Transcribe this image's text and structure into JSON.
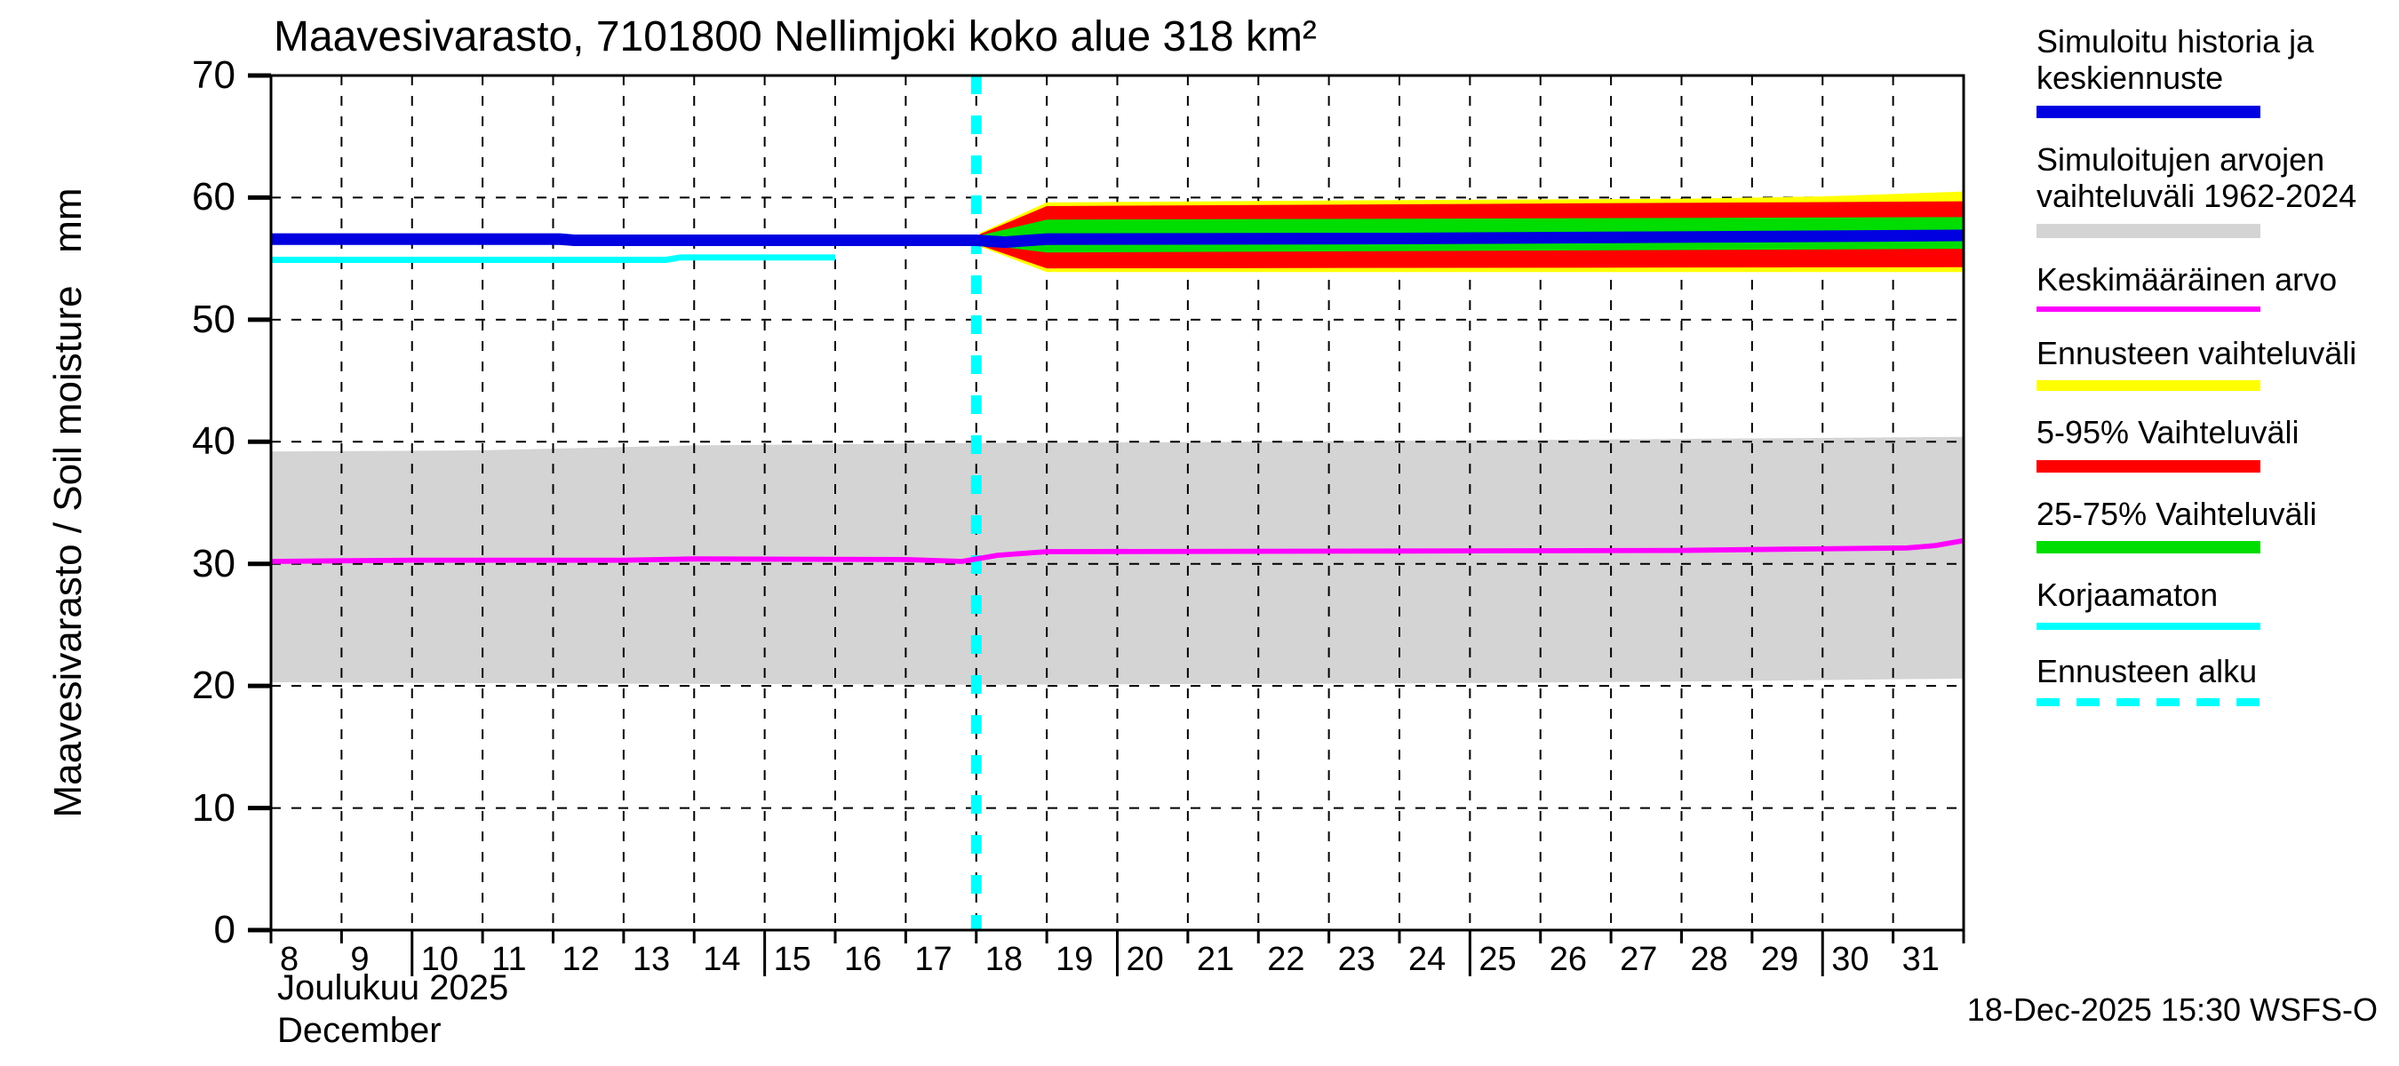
{
  "footer": {
    "timestamp": "18-Dec-2025 15:30 WSFS-O"
  },
  "legend": {
    "items": [
      {
        "label": "Simuloitu historia ja\nkeskiennuste",
        "color": "#0000e0",
        "thickness": 14,
        "dashed": false
      },
      {
        "label": "Simuloitujen arvojen\nvaihteluväli 1962-2024",
        "color": "#d4d4d4",
        "thickness": 16,
        "dashed": false
      },
      {
        "label": "Keskimääräinen arvo",
        "color": "#ff00ff",
        "thickness": 6,
        "dashed": false
      },
      {
        "label": "Ennusteen vaihteluväli",
        "color": "#ffff00",
        "thickness": 12,
        "dashed": false
      },
      {
        "label": "5-95% Vaihteluväli",
        "color": "#ff0000",
        "thickness": 14,
        "dashed": false
      },
      {
        "label": "25-75% Vaihteluväli",
        "color": "#00dd00",
        "thickness": 14,
        "dashed": false
      },
      {
        "label": "Korjaamaton",
        "color": "#00ffff",
        "thickness": 8,
        "dashed": false
      },
      {
        "label": "Ennusteen alku",
        "color": "#00ffff",
        "thickness": 9,
        "dashed": true
      }
    ]
  },
  "chart_data": {
    "type": "line",
    "title": "Maavesivarasto, 7101800 Nellimjoki koko alue 318 km²",
    "ylabel": "Maavesivarasto / Soil moisture   mm",
    "xlabel_fi": "Joulukuu 2025",
    "xlabel_en": "December",
    "xlim": [
      8,
      32
    ],
    "ylim": [
      0,
      70
    ],
    "y_ticks": [
      0,
      10,
      20,
      30,
      40,
      50,
      60,
      70
    ],
    "x_day_labels": [
      "8",
      "9",
      "10",
      "11",
      "12",
      "13",
      "14",
      "15",
      "16",
      "17",
      "18",
      "19",
      "20",
      "21",
      "22",
      "23",
      "24",
      "25",
      "26",
      "27",
      "28",
      "29",
      "30",
      "31"
    ],
    "x_long_tick_days": [
      10,
      15,
      20,
      25,
      30
    ],
    "grid": "dashed",
    "legend_position": "right",
    "forecast_start_x": 18.0,
    "forecast_line_color": "#00ffff",
    "grid_color": "#000000",
    "bands": [
      {
        "name": "simulated-range-1962-2024",
        "color": "#d4d4d4",
        "upper": [
          [
            8,
            39.2
          ],
          [
            11,
            39.3
          ],
          [
            14,
            39.7
          ],
          [
            18,
            39.9
          ],
          [
            22,
            40.0
          ],
          [
            26,
            40.15
          ],
          [
            32,
            40.4
          ]
        ],
        "lower": [
          [
            8,
            20.3
          ],
          [
            12,
            20.2
          ],
          [
            18,
            20.1
          ],
          [
            24,
            20.2
          ],
          [
            28,
            20.35
          ],
          [
            32,
            20.6
          ]
        ]
      },
      {
        "name": "forecast-envelope",
        "color": "#ffff00",
        "upper": [
          [
            18.05,
            57.1
          ],
          [
            19,
            59.6
          ],
          [
            24,
            59.8
          ],
          [
            28,
            59.9
          ],
          [
            30,
            60.1
          ],
          [
            32,
            60.5
          ]
        ],
        "lower": [
          [
            18.05,
            56.0
          ],
          [
            19,
            53.9
          ],
          [
            32,
            53.9
          ]
        ]
      },
      {
        "name": "range-5-95",
        "color": "#ff0000",
        "upper": [
          [
            18.05,
            57.0
          ],
          [
            19,
            59.3
          ],
          [
            24,
            59.45
          ],
          [
            29,
            59.6
          ],
          [
            32,
            59.7
          ]
        ],
        "lower": [
          [
            18.05,
            56.1
          ],
          [
            19,
            54.2
          ],
          [
            32,
            54.3
          ]
        ]
      },
      {
        "name": "range-25-75",
        "color": "#00dd00",
        "upper": [
          [
            18.05,
            56.9
          ],
          [
            19,
            58.2
          ],
          [
            26,
            58.3
          ],
          [
            32,
            58.4
          ]
        ],
        "lower": [
          [
            18.05,
            56.2
          ],
          [
            19,
            55.5
          ],
          [
            32,
            55.8
          ]
        ]
      }
    ],
    "series": [
      {
        "name": "simulated-history-and-mean-forecast",
        "color": "#0000e0",
        "width_units": 0.95,
        "points": [
          [
            8,
            56.6
          ],
          [
            12.1,
            56.6
          ],
          [
            12.3,
            56.5
          ],
          [
            16,
            56.5
          ],
          [
            18,
            56.5
          ],
          [
            18.4,
            56.35
          ],
          [
            19,
            56.6
          ],
          [
            24,
            56.65
          ],
          [
            29,
            56.8
          ],
          [
            32,
            56.9
          ]
        ]
      },
      {
        "name": "korjaamaton-uncorrected",
        "color": "#00ffff",
        "width_units": 0.5,
        "points": [
          [
            8,
            54.9
          ],
          [
            13.6,
            54.9
          ],
          [
            13.8,
            55.1
          ],
          [
            16,
            55.1
          ]
        ]
      },
      {
        "name": "keskimaarainen-arvo-average",
        "color": "#ff00ff",
        "width_units": 0.42,
        "points": [
          [
            8,
            30.2
          ],
          [
            10,
            30.3
          ],
          [
            13,
            30.3
          ],
          [
            14,
            30.4
          ],
          [
            17,
            30.35
          ],
          [
            17.8,
            30.2
          ],
          [
            18.3,
            30.7
          ],
          [
            19,
            31.0
          ],
          [
            24,
            31.05
          ],
          [
            28,
            31.1
          ],
          [
            29.5,
            31.2
          ],
          [
            31.2,
            31.3
          ],
          [
            31.6,
            31.5
          ],
          [
            32,
            31.9
          ]
        ]
      }
    ]
  }
}
